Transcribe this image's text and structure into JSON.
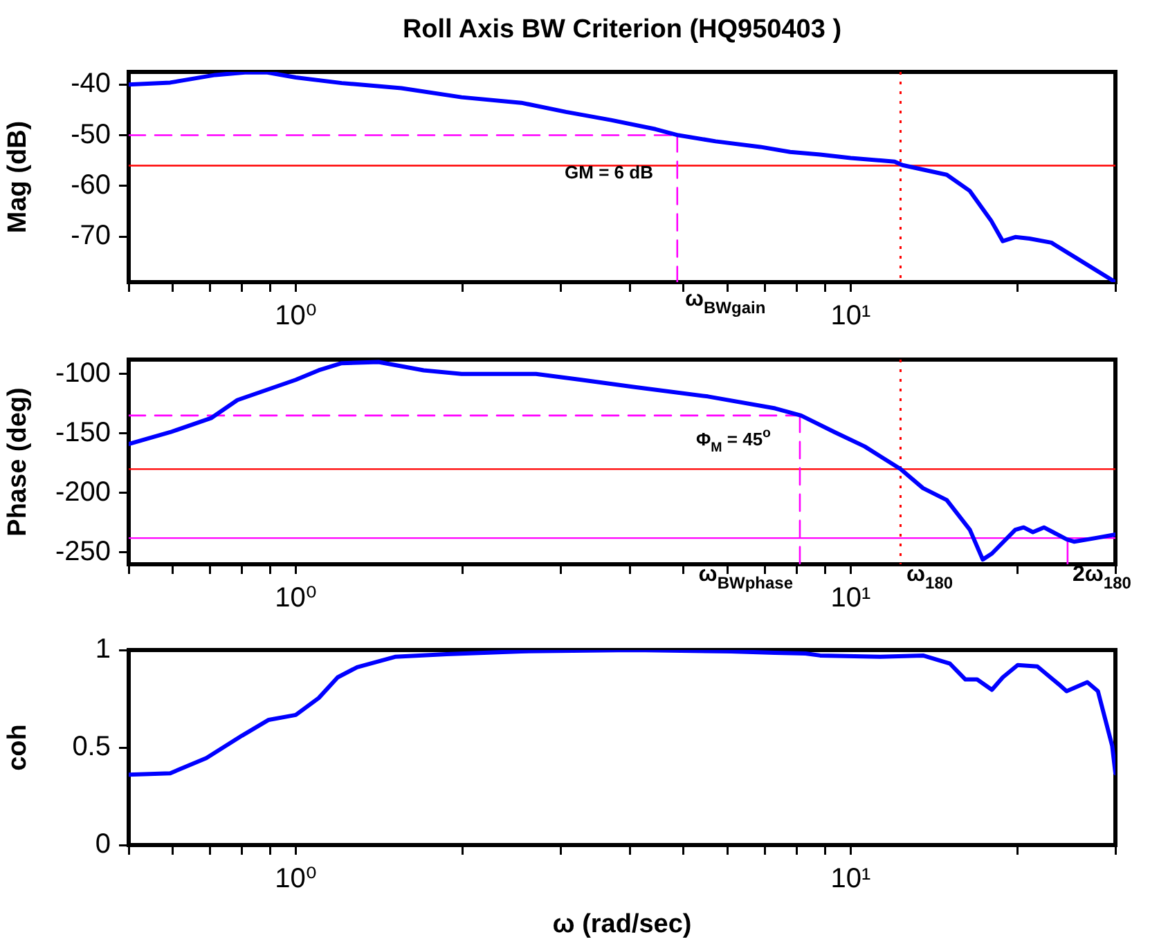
{
  "chart_data": [
    {
      "type": "line",
      "title": "Roll Axis BW Criterion (HQ950403 )",
      "ylabel": "Mag (dB)",
      "log": "x",
      "xlim": [
        0.5,
        30
      ],
      "xticks": [
        {
          "value": 0.5,
          "label": null
        },
        {
          "value": 0.6,
          "label": null
        },
        {
          "value": 0.7,
          "label": null
        },
        {
          "value": 0.8,
          "label": null
        },
        {
          "value": 0.9,
          "label": null
        },
        {
          "value": 1,
          "label": "10⁰"
        },
        {
          "value": 2,
          "label": null
        },
        {
          "value": 3,
          "label": null
        },
        {
          "value": 4,
          "label": null
        },
        {
          "value": 5,
          "label": null
        },
        {
          "value": 6,
          "label": null
        },
        {
          "value": 7,
          "label": null
        },
        {
          "value": 8,
          "label": null
        },
        {
          "value": 9,
          "label": null
        },
        {
          "value": 10,
          "label": "10¹"
        },
        {
          "value": 20,
          "label": null
        },
        {
          "value": 30,
          "label": null
        }
      ],
      "ylim": [
        -79,
        -37.5
      ],
      "yticks": [
        -70,
        -60,
        -50,
        -40
      ],
      "series": [
        {
          "color": "#0000ff",
          "line_style": "solid",
          "x": [
            0.5,
            0.594,
            0.716,
            0.81,
            0.889,
            1.0,
            1.21,
            1.55,
            1.99,
            2.55,
            3.07,
            3.7,
            4.45,
            4.89,
            5.71,
            6.87,
            7.78,
            8.81,
            10,
            12.0,
            12.4,
            14.9,
            16.4,
            17.9,
            18.8,
            19.8,
            21.0,
            23.0,
            25.3,
            30
          ],
          "values": [
            -40.0,
            -39.6,
            -38.1,
            -37.6,
            -37.6,
            -38.6,
            -39.7,
            -40.7,
            -42.5,
            -43.6,
            -45.4,
            -47.0,
            -48.8,
            -50.0,
            -51.2,
            -52.3,
            -53.3,
            -53.8,
            -54.5,
            -55.2,
            -55.9,
            -57.8,
            -61,
            -66.8,
            -70.9,
            -70.1,
            -70.4,
            -71.2,
            -74,
            -79
          ]
        },
        {
          "color": "#ff00ff",
          "line_style": "dashed",
          "x": [
            0.5,
            4.87
          ],
          "values": [
            -50,
            -50
          ]
        },
        {
          "color": "#ff00ff",
          "line_style": "dashed",
          "x": [
            4.87,
            4.87
          ],
          "values": [
            -50,
            -79
          ]
        }
      ],
      "ref_lines": [
        {
          "axis": "y",
          "value": -56,
          "color": "#ff0000",
          "line_style": "solid"
        },
        {
          "axis": "x",
          "value": 12.3,
          "color": "#ff0000",
          "line_style": "dotted"
        }
      ],
      "annotations": [
        "GM = 6 dB",
        "ω$_{BWgain}$"
      ]
    },
    {
      "type": "line",
      "ylabel": "Phase (deg)",
      "log": "x",
      "xlim": [
        0.5,
        30
      ],
      "xticks": [
        {
          "value": 0.5,
          "label": null
        },
        {
          "value": 0.6,
          "label": null
        },
        {
          "value": 0.7,
          "label": null
        },
        {
          "value": 0.8,
          "label": null
        },
        {
          "value": 0.9,
          "label": null
        },
        {
          "value": 1,
          "label": "10⁰"
        },
        {
          "value": 2,
          "label": null
        },
        {
          "value": 3,
          "label": null
        },
        {
          "value": 4,
          "label": null
        },
        {
          "value": 5,
          "label": null
        },
        {
          "value": 6,
          "label": null
        },
        {
          "value": 7,
          "label": null
        },
        {
          "value": 8,
          "label": null
        },
        {
          "value": 9,
          "label": null
        },
        {
          "value": 10,
          "label": "10¹"
        },
        {
          "value": 20,
          "label": null
        },
        {
          "value": 30,
          "label": null
        }
      ],
      "ylim": [
        -260,
        -88
      ],
      "yticks": [
        -250,
        -200,
        -150,
        -100
      ],
      "series": [
        {
          "color": "#0000ff",
          "line_style": "solid",
          "x": [
            0.5,
            0.594,
            0.705,
            0.785,
            1.0,
            1.1,
            1.21,
            1.41,
            1.7,
            1.99,
            2.71,
            3.27,
            4.06,
            5.53,
            7.31,
            8.14,
            9.36,
            10.6,
            12.3,
            13.5,
            14.9,
            16.4,
            17.3,
            17.97,
            19.8,
            20.5,
            21.3,
            22.3,
            24.5,
            25.3,
            27.6,
            30
          ],
          "values": [
            -159,
            -149,
            -137,
            -122,
            -105,
            -97,
            -91,
            -90,
            -97,
            -100,
            -100,
            -105,
            -111,
            -119,
            -129,
            -135,
            -149,
            -161,
            -180,
            -196,
            -206,
            -231,
            -256,
            -251,
            -231,
            -229,
            -233,
            -229,
            -239,
            -241,
            -238,
            -235
          ]
        },
        {
          "color": "#ff00ff",
          "line_style": "dashed",
          "x": [
            0.5,
            8.1
          ],
          "values": [
            -135,
            -135
          ]
        },
        {
          "color": "#ff00ff",
          "line_style": "dashed",
          "x": [
            8.1,
            8.1
          ],
          "values": [
            -135,
            -260
          ]
        },
        {
          "color": "#ff00ff",
          "line_style": "solid",
          "x": [
            24.6,
            24.6
          ],
          "values": [
            -238,
            -260
          ]
        }
      ],
      "ref_lines": [
        {
          "axis": "y",
          "value": -180,
          "color": "#ff0000",
          "line_style": "solid"
        },
        {
          "axis": "y",
          "value": -238,
          "color": "#ff00ff",
          "line_style": "solid"
        },
        {
          "axis": "x",
          "value": 12.3,
          "color": "#ff0000",
          "line_style": "dotted"
        }
      ],
      "annotations": [
        "Φ$_{M}$ = 45$^{o}$",
        "ω$_{BWphase}$",
        "ω$_{180}$",
        "2ω$_{180}$"
      ]
    },
    {
      "type": "line",
      "ylabel": "coh",
      "xlabel": "ω (rad/sec)",
      "log": "x",
      "xlim": [
        0.5,
        30
      ],
      "xticks": [
        {
          "value": 0.5,
          "label": null
        },
        {
          "value": 0.6,
          "label": null
        },
        {
          "value": 0.7,
          "label": null
        },
        {
          "value": 0.8,
          "label": null
        },
        {
          "value": 0.9,
          "label": null
        },
        {
          "value": 1,
          "label": "10⁰"
        },
        {
          "value": 2,
          "label": null
        },
        {
          "value": 3,
          "label": null
        },
        {
          "value": 4,
          "label": null
        },
        {
          "value": 5,
          "label": null
        },
        {
          "value": 6,
          "label": null
        },
        {
          "value": 7,
          "label": null
        },
        {
          "value": 8,
          "label": null
        },
        {
          "value": 9,
          "label": null
        },
        {
          "value": 10,
          "label": "10¹"
        },
        {
          "value": 20,
          "label": null
        },
        {
          "value": 30,
          "label": null
        }
      ],
      "ylim": [
        0,
        1
      ],
      "yticks": [
        0,
        0.5,
        1
      ],
      "series": [
        {
          "color": "#0000ff",
          "line_style": "solid",
          "x": [
            0.5,
            0.594,
            0.69,
            0.8,
            0.894,
            1.0,
            1.1,
            1.19,
            1.29,
            1.51,
            1.87,
            2.55,
            4.06,
            6.08,
            7.3,
            8.29,
            8.81,
            11.3,
            13.5,
            15.1,
            16.1,
            16.9,
            17.97,
            18.8,
            20.0,
            21.7,
            23.7,
            24.5,
            26.7,
            27.9,
            29.6,
            30
          ],
          "values": [
            0.361,
            0.368,
            0.446,
            0.561,
            0.642,
            0.667,
            0.754,
            0.86,
            0.912,
            0.965,
            0.979,
            0.993,
            1.0,
            0.993,
            0.986,
            0.982,
            0.972,
            0.965,
            0.972,
            0.93,
            0.849,
            0.849,
            0.796,
            0.86,
            0.923,
            0.916,
            0.825,
            0.789,
            0.835,
            0.789,
            0.509,
            0.368
          ]
        }
      ]
    }
  ]
}
